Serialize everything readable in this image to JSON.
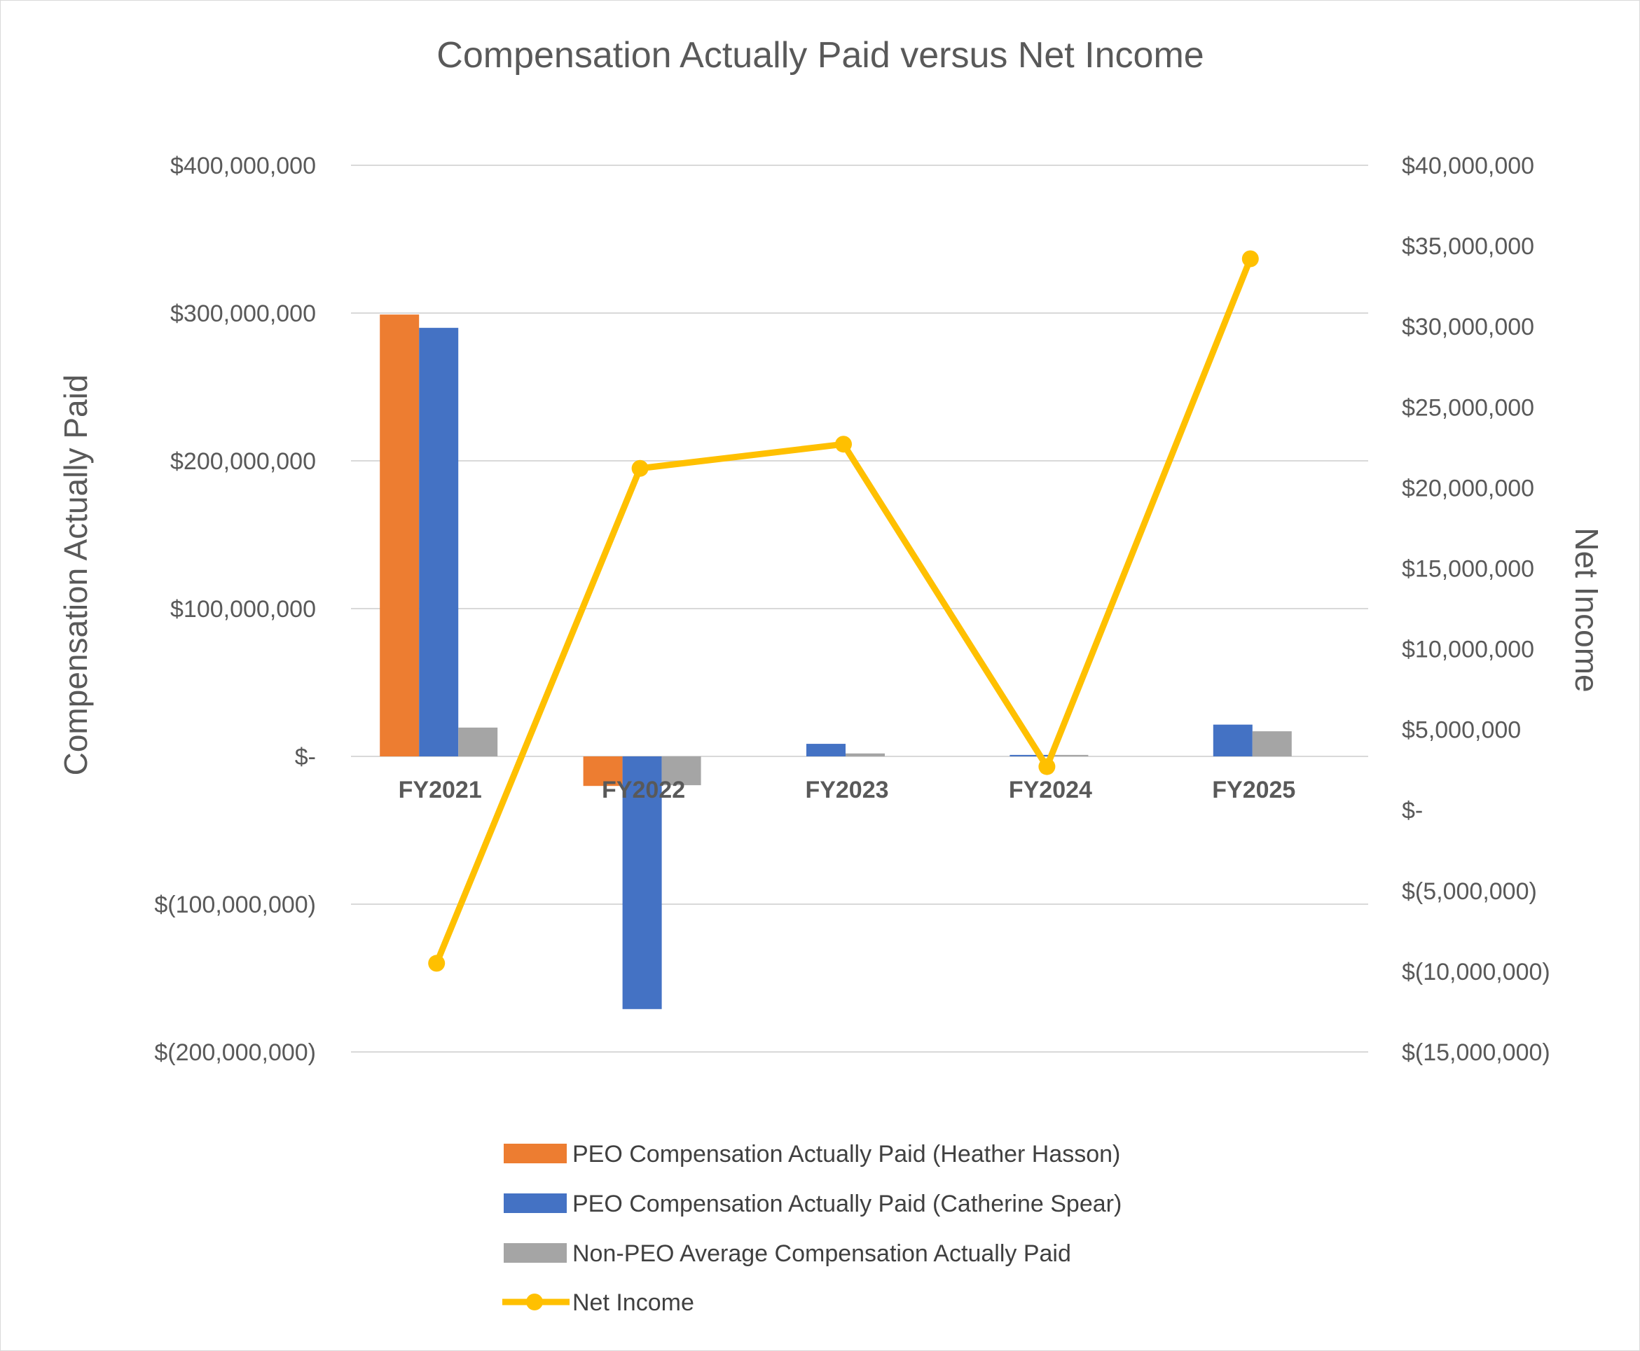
{
  "chart_data": {
    "type": "bar",
    "title": "Compensation Actually Paid versus Net Income",
    "ylabel": "Compensation Actually Paid",
    "y2label": "Net Income",
    "categories": [
      "FY2021",
      "FY2022",
      "FY2023",
      "FY2024",
      "FY2025"
    ],
    "ylim": [
      -200000000,
      400000000
    ],
    "y2lim": [
      -15000000,
      40000000
    ],
    "yticks": [
      400000000,
      300000000,
      200000000,
      100000000,
      0,
      -100000000,
      -200000000
    ],
    "ytick_labels": [
      "$400,000,000",
      "$300,000,000",
      "$200,000,000",
      "$100,000,000",
      "$-",
      "$(100,000,000)",
      "$(200,000,000)"
    ],
    "y2ticks": [
      40000000,
      35000000,
      30000000,
      25000000,
      20000000,
      15000000,
      10000000,
      5000000,
      0,
      -5000000,
      -10000000,
      -15000000
    ],
    "y2tick_labels": [
      "$40,000,000",
      "$35,000,000",
      "$30,000,000",
      "$25,000,000",
      "$20,000,000",
      "$15,000,000",
      "$10,000,000",
      "$5,000,000",
      "$-",
      "$(5,000,000)",
      "$(10,000,000)",
      "$(15,000,000)"
    ],
    "grid": true,
    "legend_position": "bottom",
    "series": [
      {
        "name": "PEO Compensation Actually Paid (Heather Hasson)",
        "type": "bar",
        "axis": "left",
        "color": "#ED7D31",
        "values": [
          299000000,
          -20000000,
          null,
          null,
          null
        ]
      },
      {
        "name": "PEO Compensation Actually Paid (Catherine Spear)",
        "type": "bar",
        "axis": "left",
        "color": "#4472C4",
        "values": [
          290000000,
          -171000000,
          8500000,
          1000000,
          21500000
        ]
      },
      {
        "name": "Non-PEO Average Compensation Actually Paid",
        "type": "bar",
        "axis": "left",
        "color": "#A5A5A5",
        "values": [
          19500000,
          -19500000,
          2000000,
          1000000,
          17000000
        ]
      },
      {
        "name": "Net Income",
        "type": "line",
        "axis": "right",
        "color": "#FFC000",
        "values": [
          -9500000,
          21200000,
          22700000,
          2700000,
          34200000
        ]
      }
    ]
  }
}
